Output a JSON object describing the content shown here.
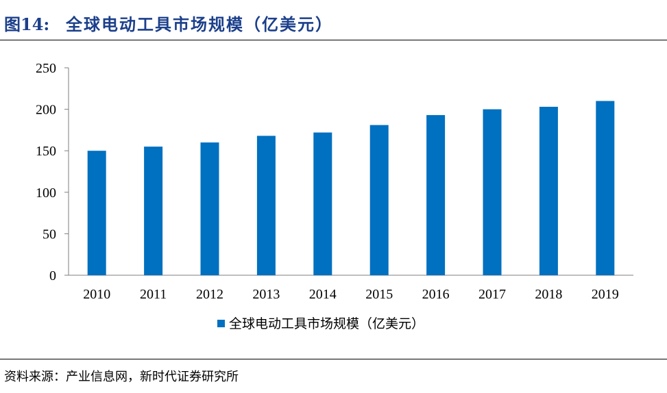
{
  "figure": {
    "number": "图14:",
    "title": "全球电动工具市场规模（亿美元）",
    "source": "资料来源：产业信息网，新时代证券研究所"
  },
  "colors": {
    "bar": "#0070C0",
    "accent": "#1B3F8B"
  },
  "chart_data": {
    "type": "bar",
    "categories": [
      "2010",
      "2011",
      "2012",
      "2013",
      "2014",
      "2015",
      "2016",
      "2017",
      "2018",
      "2019"
    ],
    "series": [
      {
        "name": "全球电动工具市场规模（亿美元）",
        "values": [
          150,
          155,
          160,
          168,
          172,
          181,
          193,
          200,
          203,
          210
        ]
      }
    ],
    "ylim": [
      0,
      250
    ],
    "yticks": [
      0,
      50,
      100,
      150,
      200,
      250
    ],
    "xlabel": "",
    "ylabel": "",
    "grid": false,
    "legend": "bottom"
  }
}
